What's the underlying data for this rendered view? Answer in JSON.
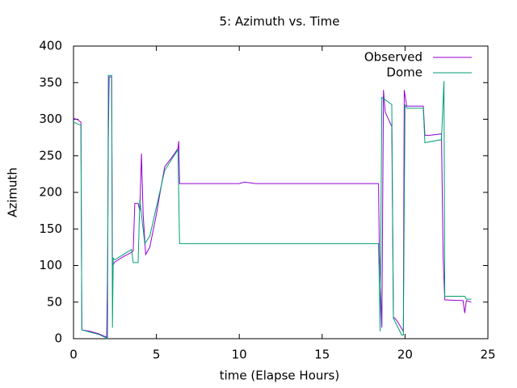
{
  "chart_data": {
    "type": "line",
    "title": "5: Azimuth vs. Time",
    "x_label": "time (Elapse Hours)",
    "y_label": "Azimuth",
    "xlim": [
      0,
      25
    ],
    "ylim": [
      0,
      400
    ],
    "xticks": [
      0,
      5,
      10,
      15,
      20,
      25
    ],
    "yticks": [
      0,
      50,
      100,
      150,
      200,
      250,
      300,
      350,
      400
    ],
    "grid": false,
    "legend": "top-right",
    "series": [
      {
        "name": "Observed",
        "color": "#9400d3",
        "x": [
          0,
          0.2,
          0.45,
          0.5,
          1,
          1.5,
          2,
          2.05,
          2.1,
          2.15,
          2.3,
          2.35,
          2.5,
          3,
          3.5,
          3.6,
          3.7,
          3.9,
          4.0,
          4.1,
          4.2,
          4.35,
          4.6,
          5,
          5.3,
          5.5,
          6,
          6.3,
          6.35,
          6.4,
          10,
          10.3,
          11,
          18.4,
          18.45,
          18.6,
          18.7,
          18.8,
          19.2,
          19.3,
          19.5,
          19.9,
          19.95,
          20.1,
          21.1,
          21.2,
          21.5,
          22.2,
          22.3,
          22.4,
          23.5,
          23.6,
          23.7,
          24
        ],
        "values": [
          301,
          300,
          296,
          12,
          10,
          7,
          2,
          90,
          270,
          358,
          358,
          100,
          105,
          112,
          118,
          120,
          185,
          185,
          175,
          253,
          170,
          115,
          125,
          170,
          210,
          235,
          250,
          260,
          270,
          212,
          212,
          214,
          212,
          212,
          120,
          15,
          340,
          310,
          290,
          30,
          25,
          10,
          340,
          318,
          318,
          278,
          278,
          280,
          110,
          53,
          52,
          35,
          52,
          50
        ]
      },
      {
        "name": "Dome",
        "color": "#009e73",
        "x": [
          0,
          0.3,
          0.45,
          0.5,
          1,
          1.5,
          2,
          2.05,
          2.1,
          2.3,
          2.35,
          2.4,
          2.5,
          3,
          3.5,
          3.6,
          3.9,
          4.0,
          4.3,
          4.6,
          5,
          5.5,
          6,
          6.3,
          6.4,
          18.4,
          18.5,
          18.6,
          19.2,
          19.3,
          19.8,
          19.9,
          20.0,
          20.1,
          21.1,
          21.2,
          22.2,
          22.35,
          22.4,
          23.6,
          23.7,
          24
        ],
        "values": [
          296,
          293,
          292,
          12,
          9,
          6,
          1,
          0,
          360,
          360,
          15,
          110,
          108,
          115,
          122,
          104,
          104,
          190,
          130,
          140,
          180,
          230,
          248,
          258,
          130,
          130,
          10,
          330,
          320,
          28,
          5,
          5,
          320,
          315,
          315,
          268,
          272,
          352,
          58,
          58,
          54,
          54
        ]
      }
    ]
  }
}
